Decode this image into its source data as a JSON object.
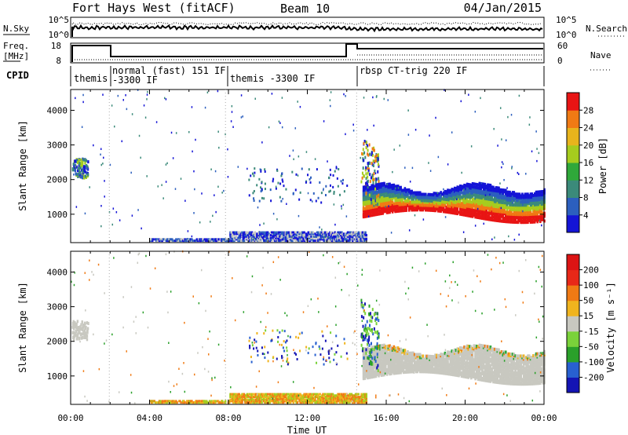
{
  "header": {
    "radar_title": "Fort Hays West (fitACF)",
    "beam_label": "Beam 10",
    "date_label": "04/Jan/2015"
  },
  "noise_panel": {
    "left_label": "N.Sky",
    "left_ticks": [
      "10^5",
      "10^0"
    ],
    "right_ticks": [
      "10^5",
      "10^0"
    ],
    "right_label": "N.Search"
  },
  "freq_panel": {
    "left_label_line1": "Freq.",
    "left_label_line2": "[MHz]",
    "left_ticks": [
      "18",
      "8"
    ],
    "right_ticks": [
      "60",
      "0"
    ],
    "right_label": "Nave"
  },
  "cpid_panel": {
    "label": "CPID",
    "segments": [
      {
        "line1": "themis",
        "line2": ""
      },
      {
        "line1": "normal (fast) 151 IF",
        "line2": "-3300 IF"
      },
      {
        "line1": "themis -3300 IF",
        "line2": ""
      },
      {
        "line1": "rbsp CT-trig 220 IF",
        "line2": ""
      }
    ]
  },
  "chart_data": [
    {
      "type": "heatmap",
      "name_shown": "",
      "xlabel": "Time UT",
      "x_ticks": [
        "00:00",
        "04:00",
        "08:00",
        "12:00",
        "16:00",
        "20:00",
        "00:00"
      ],
      "xlim_hours": [
        0,
        24
      ],
      "ylabel": "Slant Range [km]",
      "ylim": [
        180,
        4600
      ],
      "y_ticks": [
        1000,
        2000,
        3000,
        4000
      ],
      "colorbar_label": "Power [dB]",
      "colorbar_ticks": [
        4,
        8,
        12,
        16,
        20,
        24,
        28
      ],
      "colorbar_range": [
        0,
        32
      ],
      "colors": [
        "#1414d6",
        "#2c5fbe",
        "#3b8a7a",
        "#2fa83a",
        "#a6cc1e",
        "#e8b41c",
        "#f07a14",
        "#e81414"
      ]
    },
    {
      "type": "heatmap",
      "name_shown": "",
      "xlabel": "Time UT",
      "x_ticks": [
        "00:00",
        "04:00",
        "08:00",
        "12:00",
        "16:00",
        "20:00",
        "00:00"
      ],
      "xlim_hours": [
        0,
        24
      ],
      "ylabel": "Slant Range [km]",
      "ylim": [
        180,
        4600
      ],
      "y_ticks": [
        1000,
        2000,
        3000,
        4000
      ],
      "colorbar_label": "Velocity [m s⁻¹]",
      "colorbar_ticks": [
        "200",
        "100",
        "50",
        "15",
        "-15",
        "-50",
        "-100",
        "-200"
      ],
      "colorbar_range": [
        -250,
        250
      ],
      "colors": [
        "#1414b4",
        "#2860d0",
        "#2aa02a",
        "#7ad23a",
        "#c8c8c0",
        "#f0b41e",
        "#f07a14",
        "#e82818",
        "#dc1414"
      ]
    }
  ]
}
